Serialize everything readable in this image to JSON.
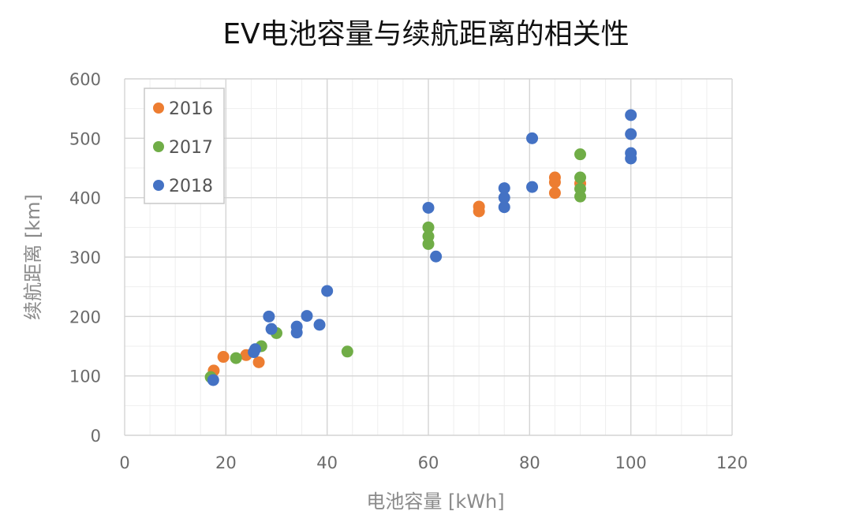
{
  "chart_data": {
    "type": "scatter",
    "title": "EV电池容量与续航距离的相关性",
    "xlabel": "电池容量 [kWh]",
    "ylabel": "续航距离 [km]",
    "xlim": [
      0,
      120
    ],
    "ylim": [
      0,
      600
    ],
    "x_ticks": [
      "0",
      "20",
      "40",
      "60",
      "80",
      "100",
      "120"
    ],
    "y_ticks": [
      "0",
      "100",
      "200",
      "300",
      "400",
      "500",
      "600"
    ],
    "grid": true,
    "legend_position": "top-left",
    "series": [
      {
        "name": "2016",
        "color": "#ED7D31",
        "points": [
          [
            17.6,
            109
          ],
          [
            19.5,
            132
          ],
          [
            24,
            135
          ],
          [
            26.5,
            123
          ],
          [
            70,
            385
          ],
          [
            70,
            377
          ],
          [
            85,
            434
          ],
          [
            85,
            426
          ],
          [
            85,
            408
          ],
          [
            90,
            424
          ]
        ]
      },
      {
        "name": "2017",
        "color": "#70AD47",
        "points": [
          [
            17,
            98
          ],
          [
            22,
            130
          ],
          [
            27,
            150
          ],
          [
            30,
            172
          ],
          [
            44,
            141
          ],
          [
            60,
            350
          ],
          [
            60,
            335
          ],
          [
            60,
            322
          ],
          [
            90,
            473
          ],
          [
            90,
            434
          ],
          [
            90,
            415
          ],
          [
            90,
            402
          ]
        ]
      },
      {
        "name": "2018",
        "color": "#4472C4",
        "points": [
          [
            17.5,
            93
          ],
          [
            25.5,
            140
          ],
          [
            25.8,
            145
          ],
          [
            28.5,
            200
          ],
          [
            29,
            179
          ],
          [
            34,
            183
          ],
          [
            34,
            173
          ],
          [
            36,
            201
          ],
          [
            38.5,
            186
          ],
          [
            40,
            243
          ],
          [
            60,
            383
          ],
          [
            61.5,
            301
          ],
          [
            75,
            416
          ],
          [
            75,
            400
          ],
          [
            75,
            384
          ],
          [
            80.5,
            500
          ],
          [
            80.5,
            418
          ],
          [
            100,
            539
          ],
          [
            100,
            507
          ],
          [
            100,
            475
          ],
          [
            100,
            466
          ]
        ]
      }
    ]
  }
}
